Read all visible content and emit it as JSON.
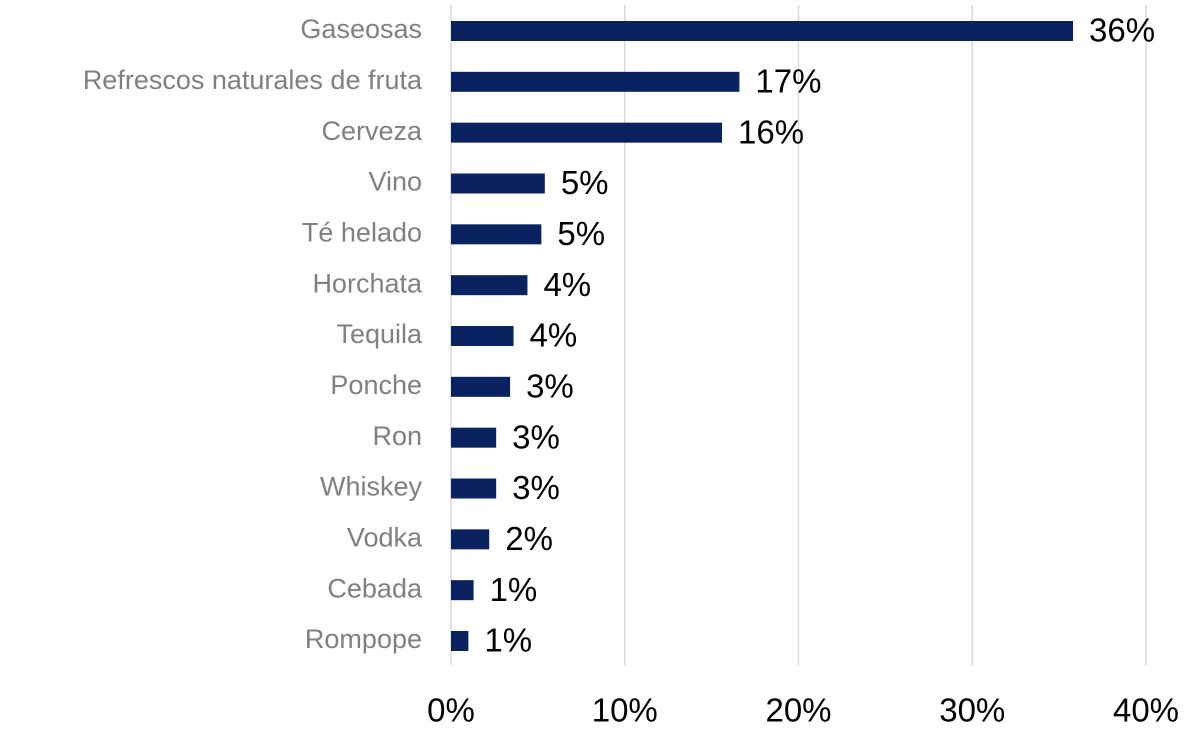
{
  "chart_data": {
    "type": "bar",
    "orientation": "horizontal",
    "categories": [
      "Gaseosas",
      "Refrescos naturales de fruta",
      "Cerveza",
      "Vino",
      "Té helado",
      "Horchata",
      "Tequila",
      "Ponche",
      "Ron",
      "Whiskey",
      "Vodka",
      "Cebada",
      "Rompope"
    ],
    "values": [
      35.8,
      16.6,
      15.6,
      5.4,
      5.2,
      4.4,
      3.6,
      3.4,
      2.6,
      2.6,
      2.2,
      1.3,
      1.0
    ],
    "value_labels": [
      "36%",
      "17%",
      "16%",
      "5%",
      "5%",
      "4%",
      "4%",
      "3%",
      "3%",
      "3%",
      "2%",
      "1%",
      "1%"
    ],
    "color": "#0b2260",
    "xlim": [
      0,
      40
    ],
    "xticks": [
      {
        "value": 0,
        "label": "0%"
      },
      {
        "value": 10,
        "label": "10%"
      },
      {
        "value": 20,
        "label": "20%"
      },
      {
        "value": 30,
        "label": "30%"
      },
      {
        "value": 40,
        "label": "40%"
      }
    ],
    "grid": true
  }
}
